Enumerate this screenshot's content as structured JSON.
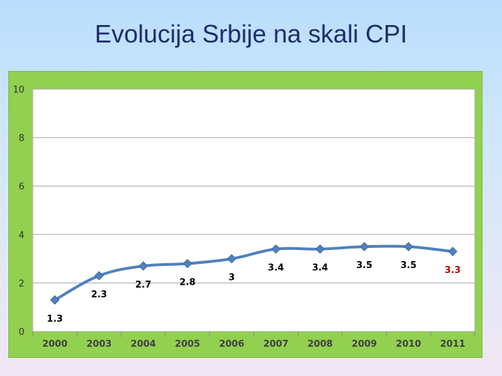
{
  "slide": {
    "title": "Evolucija Srbije na skali CPI"
  },
  "chart_data": {
    "type": "line",
    "title": "",
    "xlabel": "",
    "ylabel": "",
    "categories": [
      "2000",
      "2003",
      "2004",
      "2005",
      "2006",
      "2007",
      "2008",
      "2009",
      "2010",
      "2011"
    ],
    "series": [
      {
        "values": [
          1.3,
          2.3,
          2.7,
          2.8,
          3.0,
          3.4,
          3.4,
          3.5,
          3.5,
          3.3
        ],
        "data_labels": [
          "1.3",
          "2.3",
          "2.7",
          "2.8",
          "3",
          "3.4",
          "3.4",
          "3.5",
          "3.5",
          "3.3"
        ],
        "color": "#4f81bd"
      }
    ],
    "ylim": [
      0,
      10
    ],
    "yticks": [
      "0",
      "2",
      "4",
      "6",
      "8",
      "10"
    ],
    "grid": true,
    "colors": {
      "frame": "#92d050",
      "plot_bg": "#ffffff",
      "line": "#4f81bd",
      "label_default": "#000000",
      "label_highlight": "#c00000",
      "title": "#1f2d6b"
    },
    "highlight_label_index": 9
  }
}
